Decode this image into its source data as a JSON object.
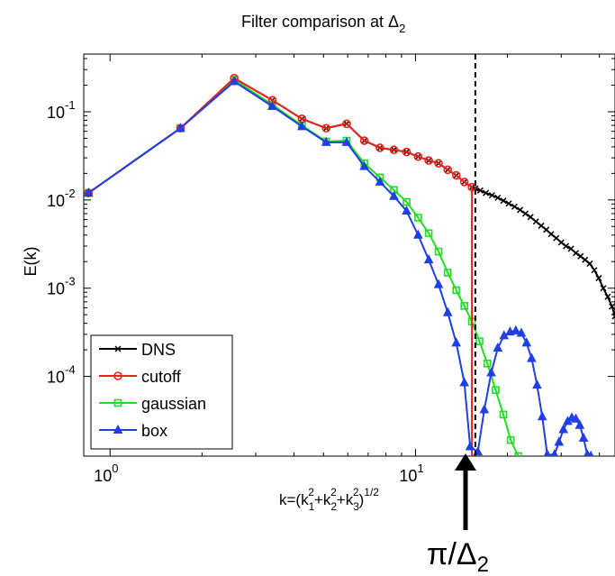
{
  "chart_data": {
    "type": "line",
    "title": "Filter comparison at Δ",
    "title_subscript": "2",
    "xlabel": "k=(k",
    "xlabel_parts": {
      "k1": "1",
      "k1sup": "2",
      "plus1": "+k",
      "k2": "2",
      "k2sup": "2",
      "plus2": "+k",
      "k3": "3",
      "k3sup": "2",
      "close": ")",
      "exp": "1/2"
    },
    "ylabel": "E(k)",
    "x_scale": "log",
    "y_scale": "log",
    "xlim": [
      0.82,
      45
    ],
    "ylim": [
      1.25e-05,
      0.45
    ],
    "x_ticks": [
      {
        "value": 1,
        "base": "10",
        "exp": "0"
      },
      {
        "value": 10,
        "base": "10",
        "exp": "1"
      }
    ],
    "y_ticks": [
      {
        "value": 0.1,
        "base": "10",
        "exp": "-1"
      },
      {
        "value": 0.01,
        "base": "10",
        "exp": "-2"
      },
      {
        "value": 0.001,
        "base": "10",
        "exp": "-3"
      },
      {
        "value": 0.0001,
        "base": "10",
        "exp": "-4"
      }
    ],
    "cutoff_line": {
      "x": 15.7,
      "style": "dashed"
    },
    "annotation": {
      "text": "π/Δ",
      "subscript": "2"
    },
    "legend": {
      "position": "bottom-left",
      "entries": [
        "DNS",
        "cutoff",
        "gaussian",
        "box"
      ]
    },
    "series": [
      {
        "name": "DNS",
        "color": "#000000",
        "marker": "x",
        "x": [
          0.85,
          1.7,
          2.55,
          3.4,
          4.25,
          5.1,
          5.95,
          6.8,
          7.65,
          8.5,
          9.35,
          10.2,
          11.05,
          11.9,
          12.75,
          13.6,
          14.45,
          15.3,
          15.7,
          16.3,
          17,
          17.8,
          18.6,
          19.4,
          20.2,
          21.1,
          22,
          22.9,
          23.8,
          24.8,
          25.8,
          26.8,
          27.8,
          28.9,
          30,
          31.1,
          32.3,
          33.5,
          34.7,
          35.9,
          37.2,
          38.5,
          39.8,
          41.2,
          42.6,
          44,
          45
        ],
        "y": [
          0.012,
          0.065,
          0.24,
          0.135,
          0.083,
          0.065,
          0.073,
          0.047,
          0.039,
          0.037,
          0.035,
          0.031,
          0.028,
          0.026,
          0.022,
          0.019,
          0.016,
          0.014,
          0.0135,
          0.0128,
          0.012,
          0.0113,
          0.0106,
          0.0098,
          0.0091,
          0.0084,
          0.0077,
          0.007,
          0.0064,
          0.0057,
          0.0051,
          0.0046,
          0.0041,
          0.0037,
          0.0033,
          0.003,
          0.0028,
          0.0025,
          0.0023,
          0.0021,
          0.0019,
          0.0016,
          0.0013,
          0.001,
          0.0008,
          0.00062,
          0.00048
        ]
      },
      {
        "name": "cutoff",
        "color": "#e8251a",
        "marker": "o",
        "x": [
          0.85,
          1.7,
          2.55,
          3.4,
          4.25,
          5.1,
          5.95,
          6.8,
          7.65,
          8.5,
          9.35,
          10.2,
          11.05,
          11.9,
          12.75,
          13.6,
          14.45,
          15.3,
          15.3
        ],
        "y": [
          0.012,
          0.065,
          0.24,
          0.135,
          0.083,
          0.065,
          0.073,
          0.047,
          0.039,
          0.037,
          0.035,
          0.031,
          0.028,
          0.026,
          0.022,
          0.019,
          0.016,
          0.014,
          1.25e-05
        ]
      },
      {
        "name": "gaussian",
        "color": "#22dd22",
        "marker": "s",
        "x": [
          0.85,
          1.7,
          2.55,
          3.4,
          4.25,
          5.1,
          5.95,
          6.8,
          7.65,
          8.5,
          9.35,
          10.2,
          11.05,
          11.9,
          12.75,
          13.6,
          14.45,
          15.3,
          16.2,
          17.2,
          18.3,
          19.4,
          20.5,
          21.7
        ],
        "y": [
          0.012,
          0.065,
          0.23,
          0.12,
          0.07,
          0.046,
          0.047,
          0.026,
          0.018,
          0.013,
          0.0095,
          0.0063,
          0.0042,
          0.0026,
          0.0015,
          0.00095,
          0.00063,
          0.00042,
          0.00025,
          0.00014,
          7e-05,
          3.7e-05,
          1.9e-05,
          1.25e-05
        ]
      },
      {
        "name": "box",
        "color": "#1f3fe8",
        "marker": "^",
        "x": [
          0.85,
          1.7,
          2.55,
          3.4,
          4.25,
          5.1,
          5.95,
          6.8,
          7.65,
          8.5,
          9.35,
          10.2,
          11.05,
          11.9,
          12.75,
          13.6,
          14.45,
          15.1,
          16.0,
          16.8,
          17.7,
          18.6,
          19.5,
          20.4,
          21.3,
          22.2,
          23.1,
          24.0,
          25.0,
          26.0,
          27.0,
          28.5,
          29.5,
          30.5,
          31.5,
          32.5,
          33.5,
          34.5,
          35.5,
          36.5,
          37.5
        ],
        "y": [
          0.012,
          0.065,
          0.22,
          0.115,
          0.068,
          0.045,
          0.045,
          0.024,
          0.016,
          0.011,
          0.0075,
          0.004,
          0.0021,
          0.0011,
          0.00053,
          0.00024,
          8.5e-05,
          1.6e-05,
          1.4e-05,
          4.2e-05,
          0.00011,
          0.00021,
          0.00029,
          0.00032,
          0.00033,
          0.00031,
          0.00024,
          0.00016,
          8e-05,
          3.5e-05,
          1.3e-05,
          1.3e-05,
          1.8e-05,
          2.5e-05,
          3.1e-05,
          3.4e-05,
          3.3e-05,
          2.8e-05,
          2e-05,
          1.3e-05,
          1.25e-05
        ]
      }
    ]
  }
}
